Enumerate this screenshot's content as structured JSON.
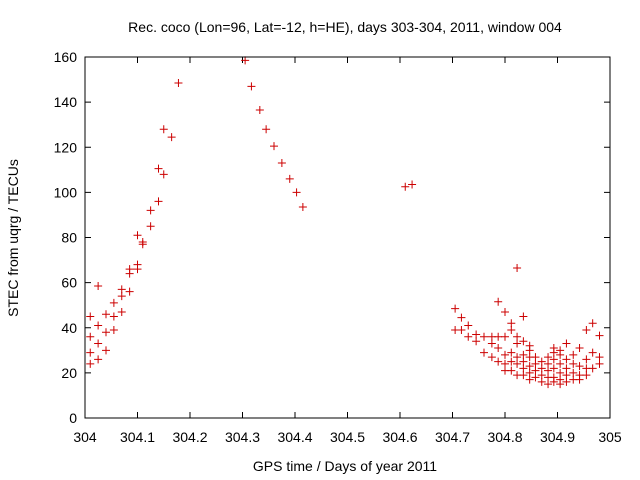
{
  "chart_data": {
    "type": "scatter",
    "title": "Rec. coco (Lon=96, Lat=-12, h=HE), days 303-304, 2011, window 004",
    "xlabel": "GPS time / Days of year 2011",
    "ylabel": "STEC from uqrg / TECUs",
    "xlim": [
      304,
      305
    ],
    "ylim": [
      0,
      160
    ],
    "xticks": [
      304,
      304.1,
      304.2,
      304.3,
      304.4,
      304.5,
      304.6,
      304.7,
      304.8,
      304.9,
      305
    ],
    "xtick_labels": [
      "304",
      "304.1",
      "304.2",
      "304.3",
      "304.4",
      "304.5",
      "304.6",
      "304.7",
      "304.8",
      "304.9",
      "305"
    ],
    "yticks": [
      0,
      20,
      40,
      60,
      80,
      100,
      120,
      140,
      160
    ],
    "ytick_labels": [
      "0",
      "20",
      "40",
      "60",
      "80",
      "100",
      "120",
      "140",
      "160"
    ],
    "grid": false,
    "marker": "plus",
    "color": "#cc0000",
    "points": [
      [
        304.01,
        24
      ],
      [
        304.01,
        29
      ],
      [
        304.01,
        36
      ],
      [
        304.01,
        45
      ],
      [
        304.025,
        26
      ],
      [
        304.025,
        33
      ],
      [
        304.025,
        41
      ],
      [
        304.025,
        58.5
      ],
      [
        304.04,
        30
      ],
      [
        304.04,
        38
      ],
      [
        304.04,
        46
      ],
      [
        304.055,
        39
      ],
      [
        304.055,
        45
      ],
      [
        304.055,
        51
      ],
      [
        304.07,
        47
      ],
      [
        304.07,
        54
      ],
      [
        304.07,
        57
      ],
      [
        304.085,
        56
      ],
      [
        304.085,
        64
      ],
      [
        304.085,
        66
      ],
      [
        304.1,
        66
      ],
      [
        304.1,
        68
      ],
      [
        304.1,
        81
      ],
      [
        304.11,
        77
      ],
      [
        304.11,
        78
      ],
      [
        304.125,
        85
      ],
      [
        304.125,
        92
      ],
      [
        304.14,
        96
      ],
      [
        304.14,
        110.5
      ],
      [
        304.15,
        108
      ],
      [
        304.15,
        128
      ],
      [
        304.165,
        124.5
      ],
      [
        304.178,
        148.5
      ],
      [
        304.305,
        158.5
      ],
      [
        304.317,
        147
      ],
      [
        304.333,
        136.5
      ],
      [
        304.345,
        128
      ],
      [
        304.36,
        120.5
      ],
      [
        304.375,
        113
      ],
      [
        304.39,
        106
      ],
      [
        304.403,
        100
      ],
      [
        304.415,
        93.5
      ],
      [
        304.61,
        102.5
      ],
      [
        304.623,
        103.5
      ],
      [
        304.705,
        39
      ],
      [
        304.705,
        48.5
      ],
      [
        304.717,
        39
      ],
      [
        304.717,
        44.5
      ],
      [
        304.73,
        36
      ],
      [
        304.73,
        41
      ],
      [
        304.745,
        34
      ],
      [
        304.745,
        37
      ],
      [
        304.76,
        29
      ],
      [
        304.76,
        36
      ],
      [
        304.775,
        27
      ],
      [
        304.775,
        33
      ],
      [
        304.775,
        36
      ],
      [
        304.787,
        25
      ],
      [
        304.787,
        31
      ],
      [
        304.787,
        36
      ],
      [
        304.787,
        51.5
      ],
      [
        304.8,
        21
      ],
      [
        304.8,
        24
      ],
      [
        304.8,
        28
      ],
      [
        304.8,
        36
      ],
      [
        304.8,
        47
      ],
      [
        304.812,
        21
      ],
      [
        304.812,
        25
      ],
      [
        304.812,
        29
      ],
      [
        304.812,
        39
      ],
      [
        304.812,
        42
      ],
      [
        304.823,
        19
      ],
      [
        304.823,
        24
      ],
      [
        304.823,
        27
      ],
      [
        304.823,
        33
      ],
      [
        304.823,
        36
      ],
      [
        304.823,
        66.5
      ],
      [
        304.835,
        19
      ],
      [
        304.835,
        22
      ],
      [
        304.835,
        25
      ],
      [
        304.835,
        28
      ],
      [
        304.835,
        34
      ],
      [
        304.835,
        45
      ],
      [
        304.847,
        17
      ],
      [
        304.847,
        20
      ],
      [
        304.847,
        23
      ],
      [
        304.847,
        27
      ],
      [
        304.847,
        30
      ],
      [
        304.847,
        32
      ],
      [
        304.858,
        18
      ],
      [
        304.858,
        21
      ],
      [
        304.858,
        24
      ],
      [
        304.858,
        27
      ],
      [
        304.87,
        16
      ],
      [
        304.87,
        19
      ],
      [
        304.87,
        22
      ],
      [
        304.87,
        25
      ],
      [
        304.882,
        15
      ],
      [
        304.882,
        18
      ],
      [
        304.882,
        21
      ],
      [
        304.882,
        24
      ],
      [
        304.882,
        27
      ],
      [
        304.893,
        16
      ],
      [
        304.893,
        18
      ],
      [
        304.893,
        22
      ],
      [
        304.893,
        26
      ],
      [
        304.893,
        29
      ],
      [
        304.893,
        31
      ],
      [
        304.905,
        15
      ],
      [
        304.905,
        17
      ],
      [
        304.905,
        20
      ],
      [
        304.905,
        24
      ],
      [
        304.905,
        28
      ],
      [
        304.905,
        30
      ],
      [
        304.917,
        16
      ],
      [
        304.917,
        19
      ],
      [
        304.917,
        22
      ],
      [
        304.917,
        26
      ],
      [
        304.917,
        33
      ],
      [
        304.93,
        17
      ],
      [
        304.93,
        20
      ],
      [
        304.93,
        24
      ],
      [
        304.93,
        28
      ],
      [
        304.942,
        17
      ],
      [
        304.942,
        19
      ],
      [
        304.942,
        23
      ],
      [
        304.942,
        31
      ],
      [
        304.955,
        19
      ],
      [
        304.955,
        22
      ],
      [
        304.955,
        26
      ],
      [
        304.955,
        39
      ],
      [
        304.967,
        22
      ],
      [
        304.967,
        29
      ],
      [
        304.967,
        42
      ],
      [
        304.98,
        24
      ],
      [
        304.98,
        27
      ],
      [
        304.98,
        36.5
      ]
    ]
  }
}
